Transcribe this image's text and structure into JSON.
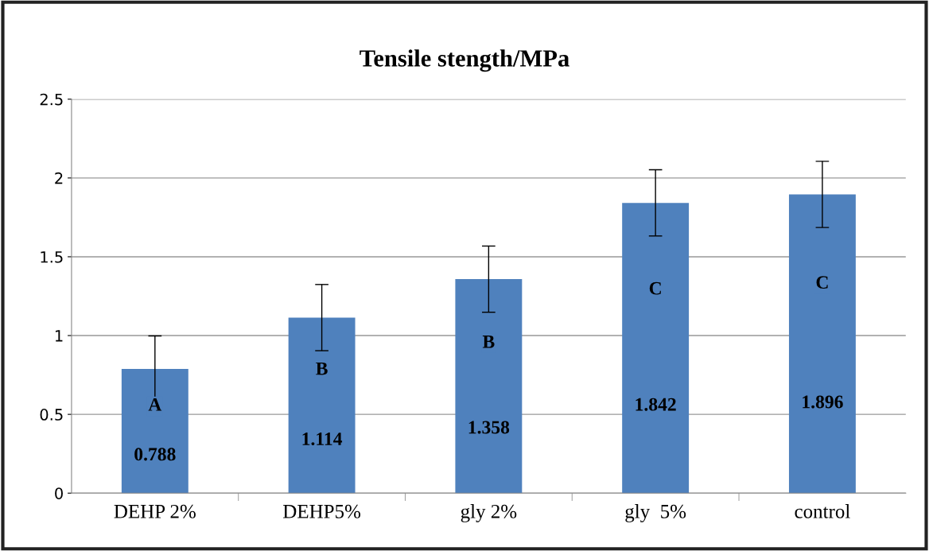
{
  "chart_data": {
    "type": "bar",
    "title": "Tensile stength/MPa",
    "categories": [
      "DEHP 2%",
      "DEHP5%",
      "gly 2%",
      "gly  5%",
      "control"
    ],
    "values": [
      0.788,
      1.114,
      1.358,
      1.842,
      1.896
    ],
    "errors": [
      0.21,
      0.21,
      0.21,
      0.21,
      0.21
    ],
    "color": "#4f81bd",
    "data_labels": true,
    "ylim": [
      0,
      2.5
    ],
    "yticks": [
      0,
      0.5,
      1,
      1.5,
      2,
      2.5
    ],
    "grid": "y",
    "annotations": [
      "A",
      "B",
      "B",
      "C",
      "C"
    ]
  }
}
